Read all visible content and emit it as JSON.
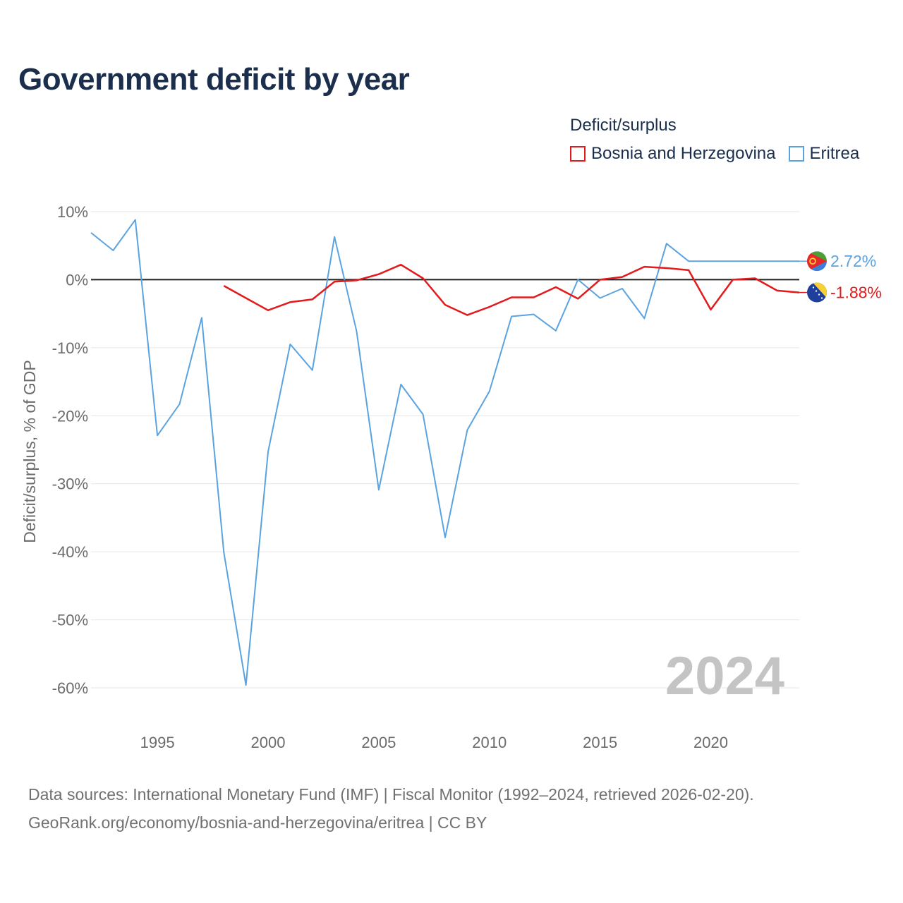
{
  "title": "Government deficit by year",
  "legend": {
    "title": "Deficit/surplus",
    "items": [
      {
        "name": "Bosnia and Herzegovina",
        "color": "#e31a1c"
      },
      {
        "name": "Eritrea",
        "color": "#5ba3e0"
      }
    ]
  },
  "footer": {
    "line1": "Data sources: International Monetary Fund (IMF) | Fiscal Monitor (1992–2024, retrieved 2026-02-20).",
    "line2": "GeoRank.org/economy/bosnia-and-herzegovina/eritrea | CC BY"
  },
  "chart_data": {
    "type": "line",
    "title": "Government deficit by year",
    "ylabel": "Deficit/surplus, % of GDP",
    "xlabel": "",
    "xlim": [
      1992,
      2024
    ],
    "ylim": [
      -65,
      10
    ],
    "yticks": [
      10,
      0,
      -10,
      -20,
      -30,
      -40,
      -50,
      -60
    ],
    "ytick_labels": [
      "10%",
      "0%",
      "-10%",
      "-20%",
      "-30%",
      "-40%",
      "-50%",
      "-60%"
    ],
    "xticks": [
      1995,
      2000,
      2005,
      2010,
      2015,
      2020
    ],
    "xtick_labels": [
      "1995",
      "2000",
      "2005",
      "2010",
      "2015",
      "2020"
    ],
    "watermark_year": "2024",
    "series": [
      {
        "name": "Bosnia and Herzegovina",
        "color": "#e31a1c",
        "flag": "bosnia-flag",
        "end_label": "-1.88%",
        "points": [
          [
            1998,
            -0.9
          ],
          [
            1999,
            -2.7
          ],
          [
            2000,
            -4.5
          ],
          [
            2001,
            -3.3
          ],
          [
            2002,
            -2.9
          ],
          [
            2003,
            -0.3
          ],
          [
            2004,
            -0.1
          ],
          [
            2005,
            0.8
          ],
          [
            2006,
            2.2
          ],
          [
            2007,
            0.2
          ],
          [
            2008,
            -3.7
          ],
          [
            2009,
            -5.2
          ],
          [
            2010,
            -4.0
          ],
          [
            2011,
            -2.6
          ],
          [
            2012,
            -2.6
          ],
          [
            2013,
            -1.1
          ],
          [
            2014,
            -2.8
          ],
          [
            2015,
            0.0
          ],
          [
            2016,
            0.4
          ],
          [
            2017,
            1.9
          ],
          [
            2018,
            1.7
          ],
          [
            2019,
            1.4
          ],
          [
            2020,
            -4.4
          ],
          [
            2021,
            0.0
          ],
          [
            2022,
            0.2
          ],
          [
            2023,
            -1.6
          ],
          [
            2024,
            -1.88
          ]
        ]
      },
      {
        "name": "Eritrea",
        "color": "#5ba3e0",
        "flag": "eritrea-flag",
        "end_label": "2.72%",
        "points": [
          [
            1992,
            6.9
          ],
          [
            1993,
            4.3
          ],
          [
            1994,
            8.8
          ],
          [
            1995,
            -22.9
          ],
          [
            1996,
            -18.3
          ],
          [
            1997,
            -5.6
          ],
          [
            1998,
            -40.1
          ],
          [
            1999,
            -59.6
          ],
          [
            2000,
            -25.3
          ],
          [
            2001,
            -9.5
          ],
          [
            2002,
            -13.3
          ],
          [
            2003,
            6.3
          ],
          [
            2004,
            -7.6
          ],
          [
            2005,
            -30.9
          ],
          [
            2006,
            -15.4
          ],
          [
            2007,
            -19.8
          ],
          [
            2008,
            -37.9
          ],
          [
            2009,
            -22.1
          ],
          [
            2010,
            -16.4
          ],
          [
            2011,
            -5.4
          ],
          [
            2012,
            -5.1
          ],
          [
            2013,
            -7.5
          ],
          [
            2014,
            0.0
          ],
          [
            2015,
            -2.7
          ],
          [
            2016,
            -1.3
          ],
          [
            2017,
            -5.7
          ],
          [
            2018,
            5.3
          ],
          [
            2019,
            2.72
          ],
          [
            2024,
            2.72
          ]
        ]
      }
    ]
  }
}
